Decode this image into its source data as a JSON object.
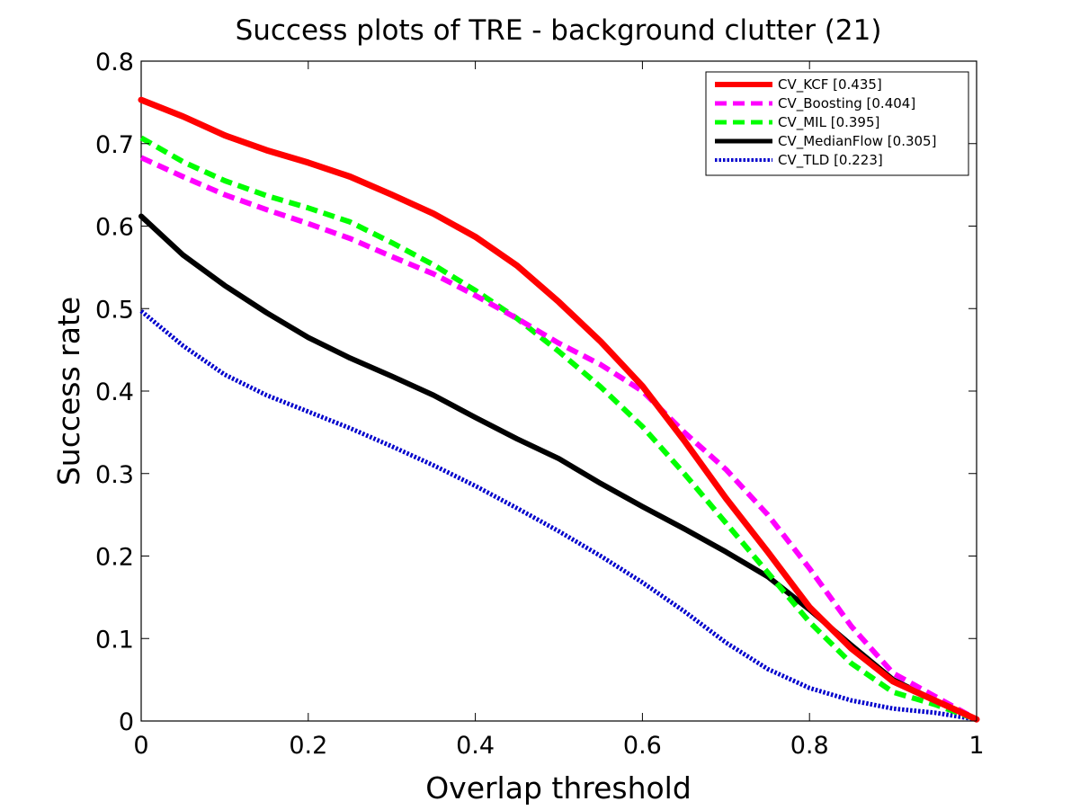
{
  "chart_data": {
    "type": "line",
    "title": "Success plots of TRE - background clutter (21)",
    "xlabel": "Overlap threshold",
    "ylabel": "Success rate",
    "xlim": [
      0,
      1
    ],
    "ylim": [
      0,
      0.8
    ],
    "xticks": [
      0,
      0.2,
      0.4,
      0.6,
      0.8,
      1
    ],
    "xtick_labels": [
      "0",
      "0.2",
      "0.4",
      "0.6",
      "0.8",
      "1"
    ],
    "yticks": [
      0,
      0.1,
      0.2,
      0.3,
      0.4,
      0.5,
      0.6,
      0.7,
      0.8
    ],
    "ytick_labels": [
      "0",
      "0.1",
      "0.2",
      "0.3",
      "0.4",
      "0.5",
      "0.6",
      "0.7",
      "0.8"
    ],
    "grid": false,
    "legend_position": "top-right",
    "x": [
      0,
      0.05,
      0.1,
      0.15,
      0.2,
      0.25,
      0.3,
      0.35,
      0.4,
      0.45,
      0.5,
      0.55,
      0.6,
      0.65,
      0.7,
      0.75,
      0.8,
      0.85,
      0.9,
      0.95,
      1
    ],
    "series": [
      {
        "name": "CV_KCF [0.435]",
        "color": "#ff0000",
        "style": "solid",
        "width": 7,
        "values": [
          0.753,
          0.733,
          0.71,
          0.692,
          0.677,
          0.66,
          0.638,
          0.615,
          0.587,
          0.552,
          0.508,
          0.46,
          0.406,
          0.34,
          0.27,
          0.205,
          0.138,
          0.088,
          0.048,
          0.025,
          0.002
        ]
      },
      {
        "name": "CV_Boosting [0.404]",
        "color": "#ff00ff",
        "style": "dashed",
        "width": 6,
        "values": [
          0.683,
          0.66,
          0.638,
          0.62,
          0.603,
          0.585,
          0.563,
          0.542,
          0.516,
          0.488,
          0.458,
          0.432,
          0.4,
          0.35,
          0.305,
          0.25,
          0.185,
          0.115,
          0.058,
          0.03,
          0.002
        ]
      },
      {
        "name": "CV_MIL [0.395]",
        "color": "#00ff00",
        "style": "dashed",
        "width": 6,
        "values": [
          0.707,
          0.678,
          0.655,
          0.637,
          0.622,
          0.605,
          0.58,
          0.553,
          0.522,
          0.488,
          0.448,
          0.405,
          0.357,
          0.3,
          0.24,
          0.18,
          0.12,
          0.07,
          0.035,
          0.02,
          0.002
        ]
      },
      {
        "name": "CV_MedianFlow [0.305]",
        "color": "#000000",
        "style": "solid",
        "width": 6,
        "values": [
          0.612,
          0.565,
          0.528,
          0.495,
          0.465,
          0.44,
          0.418,
          0.395,
          0.368,
          0.342,
          0.318,
          0.288,
          0.26,
          0.233,
          0.205,
          0.175,
          0.135,
          0.092,
          0.05,
          0.025,
          0.002
        ]
      },
      {
        "name": "CV_TLD [0.223]",
        "color": "#0000cc",
        "style": "dotted",
        "width": 5,
        "values": [
          0.497,
          0.455,
          0.42,
          0.395,
          0.375,
          0.355,
          0.333,
          0.31,
          0.285,
          0.258,
          0.23,
          0.2,
          0.168,
          0.133,
          0.095,
          0.063,
          0.04,
          0.025,
          0.015,
          0.01,
          0.002
        ]
      }
    ]
  }
}
